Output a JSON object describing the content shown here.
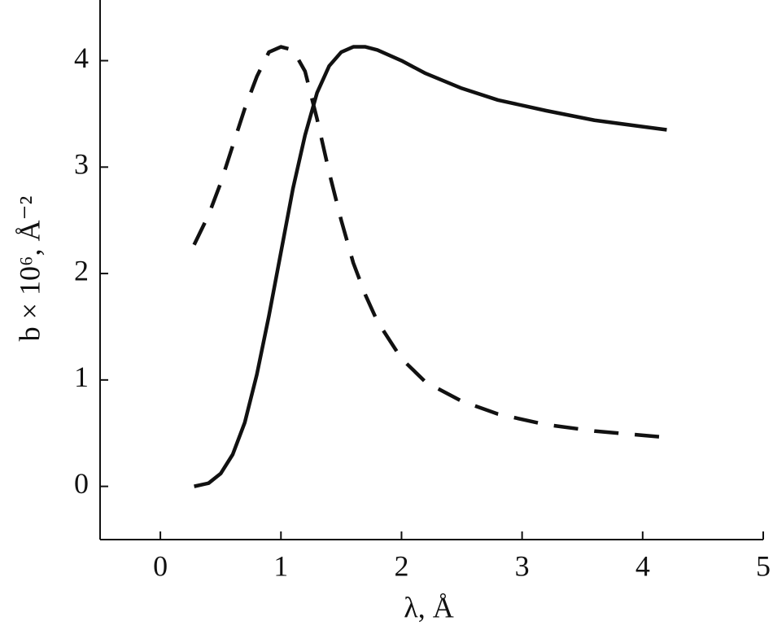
{
  "chart_data": {
    "type": "line",
    "xlabel": "λ, Å",
    "ylabel": "b × 10⁶, Å⁻²",
    "x": [
      0.28,
      0.4,
      0.5,
      0.6,
      0.7,
      0.8,
      0.9,
      1.0,
      1.1,
      1.2,
      1.3,
      1.4,
      1.5,
      1.6,
      1.7,
      1.8,
      2.0,
      2.2,
      2.5,
      2.8,
      3.2,
      3.6,
      4.0,
      4.2
    ],
    "series": [
      {
        "color": "#111111",
        "line_style": "solid",
        "values": [
          0,
          0.03,
          0.12,
          0.3,
          0.6,
          1.05,
          1.6,
          2.2,
          2.8,
          3.3,
          3.7,
          3.95,
          4.08,
          4.13,
          4.13,
          4.1,
          4.0,
          3.88,
          3.74,
          3.63,
          3.53,
          3.44,
          3.38,
          3.35
        ]
      },
      {
        "color": "#111111",
        "line_style": "dashed",
        "values": [
          2.27,
          2.55,
          2.85,
          3.2,
          3.55,
          3.85,
          4.08,
          4.13,
          4.1,
          3.9,
          3.45,
          2.95,
          2.5,
          2.1,
          1.8,
          1.55,
          1.2,
          0.98,
          0.8,
          0.68,
          0.58,
          0.52,
          0.48,
          0.46
        ]
      }
    ],
    "xlim": [
      -0.5,
      5
    ],
    "xticks": [
      0,
      1,
      2,
      3,
      4,
      5
    ],
    "ylim": [
      -0.5,
      4.57
    ],
    "yticks": [
      0,
      1,
      2,
      3,
      4
    ],
    "grid": false
  }
}
